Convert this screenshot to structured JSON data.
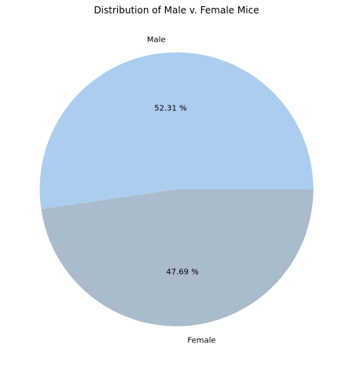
{
  "chart_data": {
    "type": "pie",
    "title": "Distribution of Male v. Female Mice",
    "categories": [
      "Male",
      "Female"
    ],
    "values": [
      52.31,
      47.69
    ],
    "percent_labels": [
      "52.31 %",
      "47.69 %"
    ],
    "colors": [
      "#abcdf0",
      "#aabbcb"
    ],
    "start_angle_deg": 0,
    "direction": "counterclockwise",
    "legend": "none"
  }
}
